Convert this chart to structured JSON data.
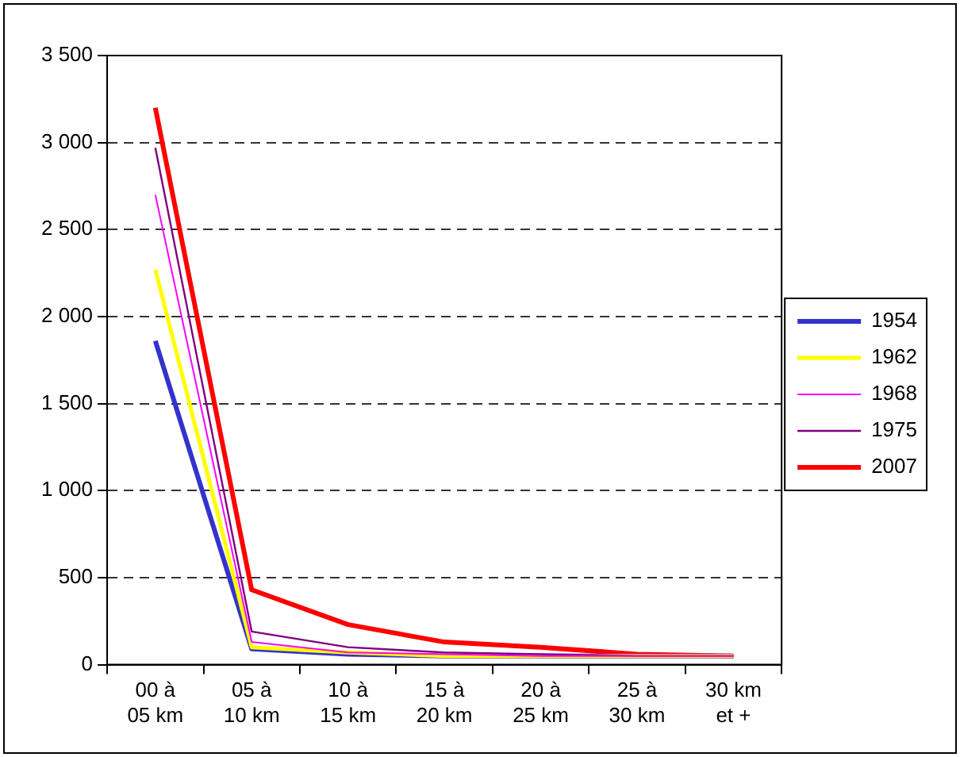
{
  "chart_data": {
    "type": "line",
    "categories": [
      "00 à\n05 km",
      "05 à\n10 km",
      "10 à\n15 km",
      "15 à\n20 km",
      "20 à\n25 km",
      "25 à\n30 km",
      "30 km\net +"
    ],
    "series": [
      {
        "name": "1954",
        "color": "#3333cc",
        "values": [
          1860,
          90,
          60,
          50,
          50,
          50,
          50
        ]
      },
      {
        "name": "1962",
        "color": "#ffff00",
        "values": [
          2270,
          100,
          70,
          50,
          50,
          50,
          50
        ]
      },
      {
        "name": "1968",
        "color": "#ff00ff",
        "values": [
          2700,
          130,
          70,
          60,
          50,
          50,
          50
        ]
      },
      {
        "name": "1975",
        "color": "#800080",
        "values": [
          2970,
          190,
          100,
          70,
          60,
          50,
          50
        ]
      },
      {
        "name": "2007",
        "color": "#ff0000",
        "values": [
          3200,
          430,
          230,
          130,
          100,
          60,
          50
        ]
      }
    ],
    "ylim": [
      0,
      3500
    ],
    "yticks": [
      0,
      500,
      1000,
      1500,
      2000,
      2500,
      3000,
      3500
    ],
    "grid": "y",
    "legend": "right",
    "marker": "none"
  }
}
